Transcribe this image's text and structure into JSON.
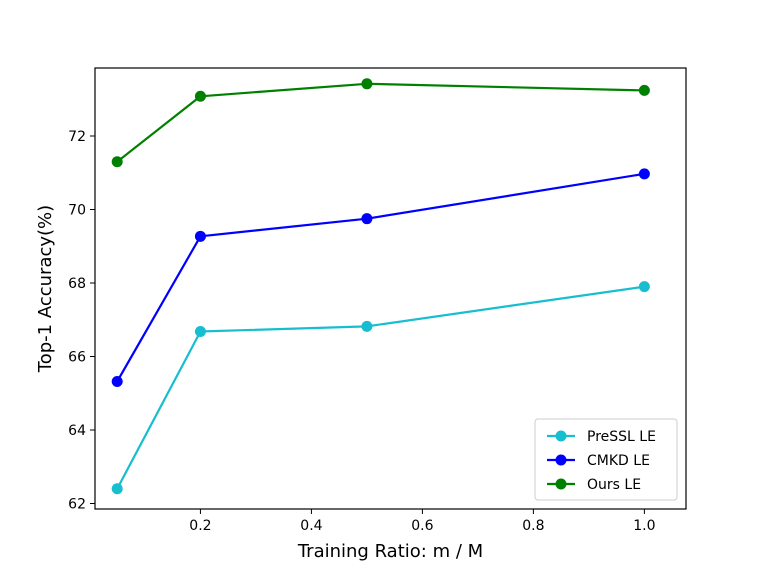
{
  "chart_data": {
    "type": "line",
    "title": "",
    "xlabel": "Training Ratio: m / M",
    "ylabel": "Top-1 Accuracy(%)",
    "x": [
      0.05,
      0.2,
      0.5,
      1.0
    ],
    "xlim": [
      0.01,
      1.075
    ],
    "ylim": [
      61.85,
      73.85
    ],
    "xticks": [
      0.2,
      0.4,
      0.6,
      0.8,
      1.0
    ],
    "xtick_labels": [
      "0.2",
      "0.4",
      "0.6",
      "0.8",
      "1.0"
    ],
    "yticks": [
      62,
      64,
      66,
      68,
      70,
      72
    ],
    "ytick_labels": [
      "62",
      "64",
      "66",
      "68",
      "70",
      "72"
    ],
    "legend_position": "bottom-right",
    "grid": false,
    "series": [
      {
        "name": "PreSSL LE",
        "color": "#17becf",
        "values": [
          62.4,
          66.68,
          66.82,
          67.9
        ]
      },
      {
        "name": "CMKD LE",
        "color": "#0000ff",
        "values": [
          65.32,
          69.27,
          69.75,
          70.97
        ]
      },
      {
        "name": "Ours LE",
        "color": "#008000",
        "values": [
          71.3,
          73.08,
          73.42,
          73.24
        ]
      }
    ]
  }
}
